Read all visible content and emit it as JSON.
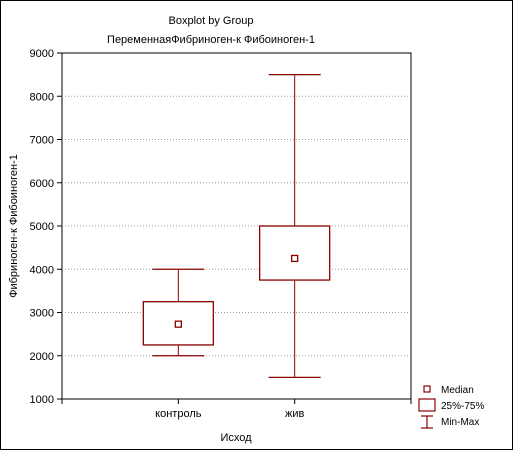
{
  "chart_data": {
    "type": "boxplot",
    "title": "Boxplot by Group",
    "subtitle": "ПеременнаяФибриноген-к Фибоиноген-1",
    "xlabel": "Исход",
    "ylabel": "Фибриноген-к Фибоиноген-1",
    "ylim": [
      1000,
      9000
    ],
    "yticks": [
      "1000",
      "2000",
      "3000",
      "4000",
      "5000",
      "6000",
      "7000",
      "8000",
      "9000"
    ],
    "grid": true,
    "legend_position": "bottom-right",
    "color": "#8b0000",
    "categories": [
      "контроль",
      "жив"
    ],
    "boxes": [
      {
        "category": "контроль",
        "min": 2000,
        "q1": 2250,
        "median": 2730,
        "q3": 3250,
        "max": 4000
      },
      {
        "category": "жив",
        "min": 1500,
        "q1": 3750,
        "median": 4250,
        "q3": 5000,
        "max": 8500
      }
    ],
    "legend": [
      {
        "icon": "median-marker-icon",
        "label": "Median"
      },
      {
        "icon": "box-icon",
        "label": "25%-75%"
      },
      {
        "icon": "whisker-icon",
        "label": "Min-Max"
      }
    ]
  }
}
